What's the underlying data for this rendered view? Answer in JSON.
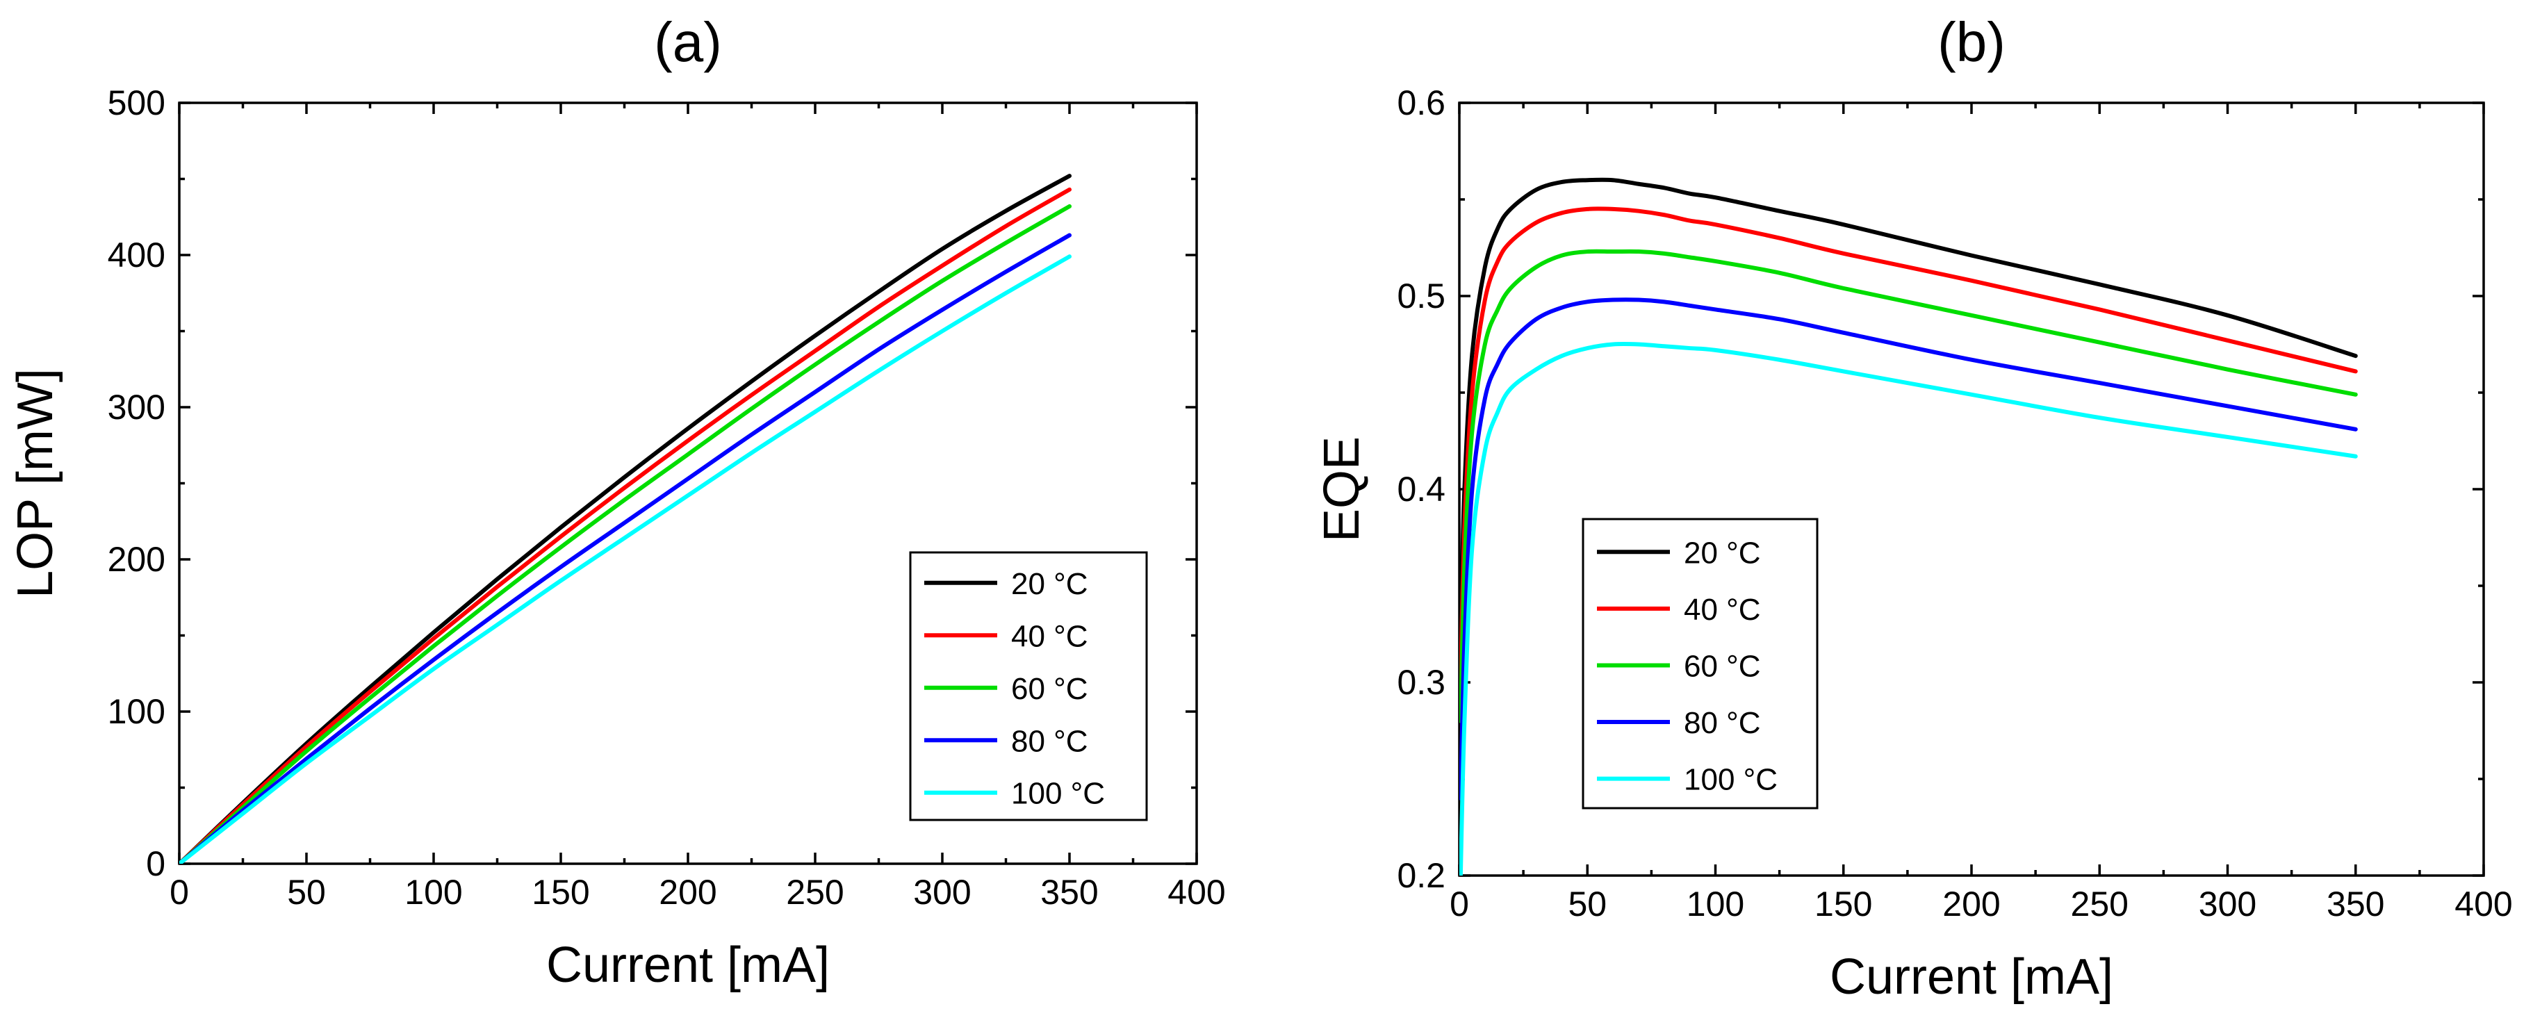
{
  "chart_data": [
    {
      "type": "line",
      "panel_label": "(a)",
      "title": "(a)",
      "xlabel": "Current [mA]",
      "ylabel": "LOP [mW]",
      "xlim": [
        0,
        400
      ],
      "ylim": [
        0,
        500
      ],
      "xticks": [
        0,
        50,
        100,
        150,
        200,
        250,
        300,
        350,
        400
      ],
      "yticks": [
        0,
        100,
        200,
        300,
        400,
        500
      ],
      "grid": false,
      "legend_position": "lower-right",
      "x": [
        0,
        25,
        50,
        75,
        100,
        125,
        150,
        175,
        200,
        225,
        250,
        275,
        300,
        325,
        350
      ],
      "series": [
        {
          "name": "20 °C",
          "color": "#000000",
          "values": [
            0,
            40,
            79,
            116,
            152,
            187,
            221,
            254,
            286,
            317,
            347,
            376,
            404,
            429,
            452
          ]
        },
        {
          "name": "40 °C",
          "color": "#ff0000",
          "values": [
            0,
            39,
            77,
            113,
            148,
            182,
            215,
            247,
            278,
            308,
            337,
            366,
            393,
            419,
            443
          ]
        },
        {
          "name": "60 °C",
          "color": "#00dd00",
          "values": [
            0,
            37,
            74,
            109,
            143,
            176,
            208,
            239,
            269,
            299,
            328,
            356,
            383,
            408,
            432
          ]
        },
        {
          "name": "80 °C",
          "color": "#0000ff",
          "values": [
            0,
            35,
            69,
            102,
            134,
            165,
            195,
            224,
            253,
            282,
            310,
            338,
            364,
            389,
            413
          ]
        },
        {
          "name": "100 °C",
          "color": "#00ffff",
          "values": [
            0,
            33,
            66,
            97,
            128,
            157,
            186,
            214,
            242,
            270,
            297,
            324,
            350,
            375,
            399
          ]
        }
      ]
    },
    {
      "type": "line",
      "panel_label": "(b)",
      "title": "(b)",
      "xlabel": "Current [mA]",
      "ylabel": "EQE",
      "xlim": [
        0,
        400
      ],
      "ylim": [
        0.2,
        0.6
      ],
      "xticks": [
        0,
        50,
        100,
        150,
        200,
        250,
        300,
        350,
        400
      ],
      "yticks": [
        0.2,
        0.3,
        0.4,
        0.5,
        0.6
      ],
      "ytick_labels": [
        "0.2",
        "0.3",
        "0.4",
        "0.5",
        "0.6"
      ],
      "grid": false,
      "legend_position": "lower-left",
      "x": [
        0.5,
        2,
        5,
        10,
        15,
        20,
        30,
        40,
        50,
        60,
        70,
        80,
        90,
        100,
        125,
        150,
        200,
        250,
        300,
        350
      ],
      "series": [
        {
          "name": "20 °C",
          "color": "#000000",
          "values": [
            0.32,
            0.4,
            0.47,
            0.515,
            0.535,
            0.545,
            0.555,
            0.559,
            0.56,
            0.56,
            0.558,
            0.556,
            0.553,
            0.551,
            0.544,
            0.537,
            0.521,
            0.506,
            0.49,
            0.469
          ]
        },
        {
          "name": "40 °C",
          "color": "#ff0000",
          "values": [
            0.3,
            0.38,
            0.45,
            0.498,
            0.518,
            0.528,
            0.538,
            0.543,
            0.545,
            0.545,
            0.544,
            0.542,
            0.539,
            0.537,
            0.53,
            0.522,
            0.508,
            0.493,
            0.477,
            0.461
          ]
        },
        {
          "name": "60 °C",
          "color": "#00dd00",
          "values": [
            0.28,
            0.36,
            0.43,
            0.475,
            0.493,
            0.504,
            0.515,
            0.521,
            0.523,
            0.523,
            0.523,
            0.522,
            0.52,
            0.518,
            0.512,
            0.504,
            0.49,
            0.476,
            0.462,
            0.449
          ]
        },
        {
          "name": "80 °C",
          "color": "#0000ff",
          "values": [
            0.24,
            0.32,
            0.4,
            0.447,
            0.465,
            0.476,
            0.488,
            0.494,
            0.497,
            0.498,
            0.498,
            0.497,
            0.495,
            0.493,
            0.488,
            0.481,
            0.467,
            0.455,
            0.443,
            0.431
          ]
        },
        {
          "name": "100 °C",
          "color": "#00ffff",
          "values": [
            0.2,
            0.28,
            0.37,
            0.42,
            0.44,
            0.452,
            0.462,
            0.469,
            0.473,
            0.475,
            0.475,
            0.474,
            0.473,
            0.472,
            0.467,
            0.461,
            0.449,
            0.437,
            0.427,
            0.417
          ]
        }
      ]
    }
  ]
}
